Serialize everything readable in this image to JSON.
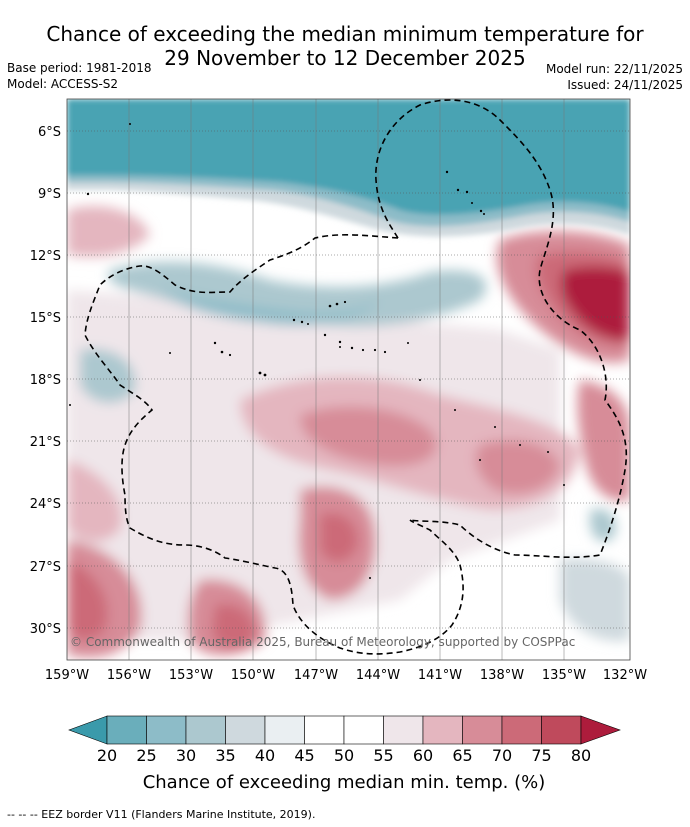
{
  "title": {
    "line1": "Chance of exceeding the median minimum temperature for",
    "line2": "29 November to 12 December 2025"
  },
  "meta": {
    "base_period": "Base period: 1981-2018",
    "model": "Model: ACCESS-S2",
    "model_run": "Model run: 22/11/2025",
    "issued": "Issued: 24/11/2025"
  },
  "map": {
    "lat_labels": [
      "6°S",
      "9°S",
      "12°S",
      "15°S",
      "18°S",
      "21°S",
      "24°S",
      "27°S",
      "30°S"
    ],
    "lon_labels": [
      "159°W",
      "156°W",
      "153°W",
      "150°W",
      "147°W",
      "144°W",
      "141°W",
      "138°W",
      "135°W",
      "132°W"
    ],
    "copyright": "© Commonwealth of Australia 2025, Bureau of Meteorology, supported by COSPPac"
  },
  "colorbar": {
    "title": "Chance of exceeding median min. temp. (%)",
    "ticks": [
      "20",
      "25",
      "30",
      "35",
      "40",
      "45",
      "50",
      "55",
      "60",
      "65",
      "70",
      "75",
      "80"
    ],
    "colors": [
      "#3a9aab",
      "#6aaebb",
      "#8dbcc8",
      "#acc8cf",
      "#cfd9de",
      "#eaeff2",
      "#ffffff",
      "#ffffff",
      "#efe6ea",
      "#e4b6bf",
      "#d78c98",
      "#cc6a78",
      "#bf4a5c",
      "#ad1c3c"
    ]
  },
  "footer": {
    "legend_note": "--  --  -- EEZ border V11 (Flanders Marine Institute, 2019)."
  }
}
